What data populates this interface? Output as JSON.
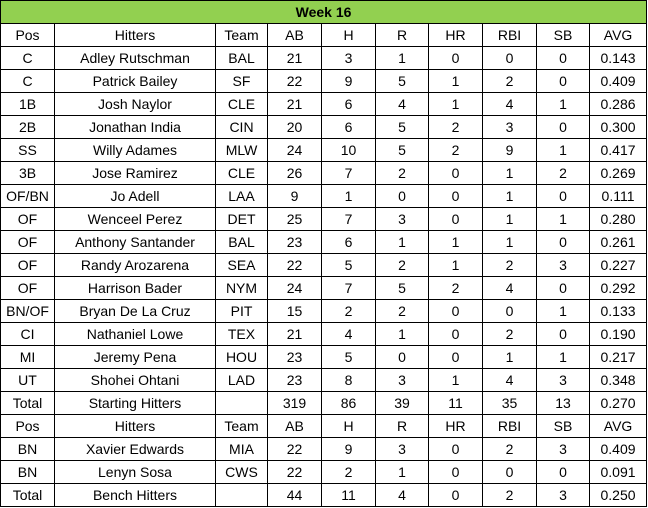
{
  "title": "Week 16",
  "headers": [
    "Pos",
    "Hitters",
    "Team",
    "AB",
    "H",
    "R",
    "HR",
    "RBI",
    "SB",
    "AVG"
  ],
  "starters": [
    [
      "C",
      "Adley Rutschman",
      "BAL",
      "21",
      "3",
      "1",
      "0",
      "0",
      "0",
      "0.143"
    ],
    [
      "C",
      "Patrick Bailey",
      "SF",
      "22",
      "9",
      "5",
      "1",
      "2",
      "0",
      "0.409"
    ],
    [
      "1B",
      "Josh Naylor",
      "CLE",
      "21",
      "6",
      "4",
      "1",
      "4",
      "1",
      "0.286"
    ],
    [
      "2B",
      "Jonathan India",
      "CIN",
      "20",
      "6",
      "5",
      "2",
      "3",
      "0",
      "0.300"
    ],
    [
      "SS",
      "Willy Adames",
      "MLW",
      "24",
      "10",
      "5",
      "2",
      "9",
      "1",
      "0.417"
    ],
    [
      "3B",
      "Jose Ramirez",
      "CLE",
      "26",
      "7",
      "2",
      "0",
      "1",
      "2",
      "0.269"
    ],
    [
      "OF/BN",
      "Jo Adell",
      "LAA",
      "9",
      "1",
      "0",
      "0",
      "1",
      "0",
      "0.111"
    ],
    [
      "OF",
      "Wenceel Perez",
      "DET",
      "25",
      "7",
      "3",
      "0",
      "1",
      "1",
      "0.280"
    ],
    [
      "OF",
      "Anthony Santander",
      "BAL",
      "23",
      "6",
      "1",
      "1",
      "1",
      "0",
      "0.261"
    ],
    [
      "OF",
      "Randy Arozarena",
      "SEA",
      "22",
      "5",
      "2",
      "1",
      "2",
      "3",
      "0.227"
    ],
    [
      "OF",
      "Harrison Bader",
      "NYM",
      "24",
      "7",
      "5",
      "2",
      "4",
      "0",
      "0.292"
    ],
    [
      "BN/OF",
      "Bryan De La Cruz",
      "PIT",
      "15",
      "2",
      "2",
      "0",
      "0",
      "1",
      "0.133"
    ],
    [
      "CI",
      "Nathaniel Lowe",
      "TEX",
      "21",
      "4",
      "1",
      "0",
      "2",
      "0",
      "0.190"
    ],
    [
      "MI",
      "Jeremy Pena",
      "HOU",
      "23",
      "5",
      "0",
      "0",
      "1",
      "1",
      "0.217"
    ],
    [
      "UT",
      "Shohei Ohtani",
      "LAD",
      "23",
      "8",
      "3",
      "1",
      "4",
      "3",
      "0.348"
    ]
  ],
  "starter_total": [
    "Total",
    "Starting Hitters",
    "",
    "319",
    "86",
    "39",
    "11",
    "35",
    "13",
    "0.270"
  ],
  "bench": [
    [
      "BN",
      "Xavier Edwards",
      "MIA",
      "22",
      "9",
      "3",
      "0",
      "2",
      "3",
      "0.409"
    ],
    [
      "BN",
      "Lenyn Sosa",
      "CWS",
      "22",
      "2",
      "1",
      "0",
      "0",
      "0",
      "0.091"
    ]
  ],
  "bench_total": [
    "Total",
    "Bench Hitters",
    "",
    "44",
    "11",
    "4",
    "0",
    "2",
    "3",
    "0.250"
  ],
  "colors": {
    "header_fill": "#92d050",
    "border": "#000000"
  }
}
